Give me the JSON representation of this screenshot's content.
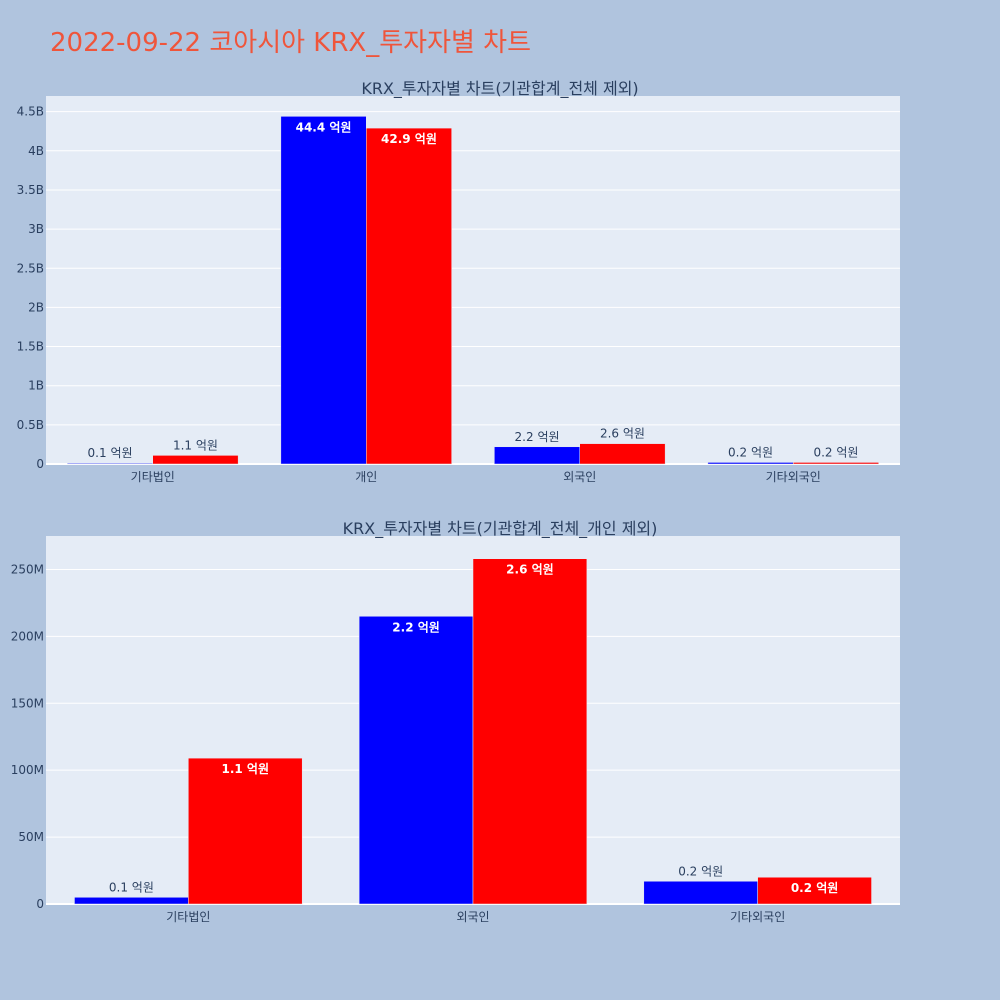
{
  "page_title": "2022-09-22 코아시아 KRX_투자자별 차트",
  "colors": {
    "background": "#b0c4de",
    "plot_background": "#e5ecf6",
    "title": "#ef553b",
    "series_1": "#0000ff",
    "series_2": "#ff0000"
  },
  "chart_data": [
    {
      "type": "bar",
      "title": "KRX_투자자별 차트(기관합계_전체 제외)",
      "categories": [
        "기타법인",
        "개인",
        "외국인",
        "기타외국인"
      ],
      "ylim": [
        0,
        4.7
      ],
      "unit": "B",
      "yticks": [
        0,
        0.5,
        1,
        1.5,
        2,
        2.5,
        3,
        3.5,
        4,
        4.5
      ],
      "ytick_labels": [
        "0",
        "0.5B",
        "1B",
        "1.5B",
        "2B",
        "2.5B",
        "3B",
        "3.5B",
        "4B",
        "4.5B"
      ],
      "grid": true,
      "series": [
        {
          "values": [
            0.01,
            4.44,
            0.22,
            0.02
          ],
          "labels": [
            "0.1 억원",
            "44.4 억원",
            "2.2 억원",
            "0.2 억원"
          ]
        },
        {
          "values": [
            0.11,
            4.29,
            0.26,
            0.02
          ],
          "labels": [
            "1.1 억원",
            "42.9 억원",
            "2.6 억원",
            "0.2 억원"
          ]
        }
      ]
    },
    {
      "type": "bar",
      "title": "KRX_투자자별 차트(기관합계_전체_개인 제외)",
      "categories": [
        "기타법인",
        "외국인",
        "기타외국인"
      ],
      "ylim": [
        0,
        275
      ],
      "unit": "M",
      "yticks": [
        0,
        50,
        100,
        150,
        200,
        250
      ],
      "ytick_labels": [
        "0",
        "50M",
        "100M",
        "150M",
        "200M",
        "250M"
      ],
      "grid": true,
      "series": [
        {
          "values": [
            5,
            215,
            17
          ],
          "labels": [
            "0.1 억원",
            "2.2 억원",
            "0.2 억원"
          ]
        },
        {
          "values": [
            109,
            258,
            20
          ],
          "labels": [
            "1.1 억원",
            "2.6 억원",
            "0.2 억원"
          ]
        }
      ]
    }
  ]
}
